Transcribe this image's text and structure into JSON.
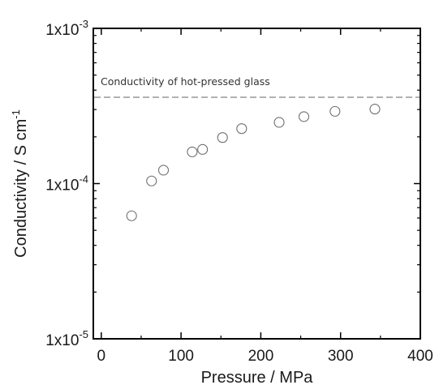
{
  "chart_data": {
    "type": "scatter",
    "xlabel": "Pressure / MPa",
    "ylabel": "Conductivity / S cm",
    "ylabel_superscript": "-1",
    "xlim": [
      -10,
      400
    ],
    "ylim": [
      1e-05,
      0.001
    ],
    "y_scale": "log",
    "x_ticks": [
      0,
      100,
      200,
      300,
      400
    ],
    "x_tick_labels": [
      "0",
      "100",
      "200",
      "300",
      "400"
    ],
    "y_ticks": [
      {
        "value": 1e-05,
        "mantissa": "1x10",
        "exponent": "-5"
      },
      {
        "value": 0.0001,
        "mantissa": "1x10",
        "exponent": "-4"
      },
      {
        "value": 0.001,
        "mantissa": "1x10",
        "exponent": "-3"
      }
    ],
    "grid": false,
    "marker": "open-circle",
    "series": [
      {
        "x": [
          38,
          63,
          78,
          114,
          127,
          152,
          176,
          223,
          254,
          293,
          343
        ],
        "y": [
          6.2e-05,
          0.000104,
          0.000122,
          0.00016,
          0.000166,
          0.000198,
          0.000226,
          0.000248,
          0.00027,
          0.000292,
          0.000302
        ]
      }
    ],
    "reference_line": {
      "y": 0.00036,
      "style": "dashed",
      "color": "#999999",
      "label": "Conductivity of hot-pressed glass"
    }
  }
}
